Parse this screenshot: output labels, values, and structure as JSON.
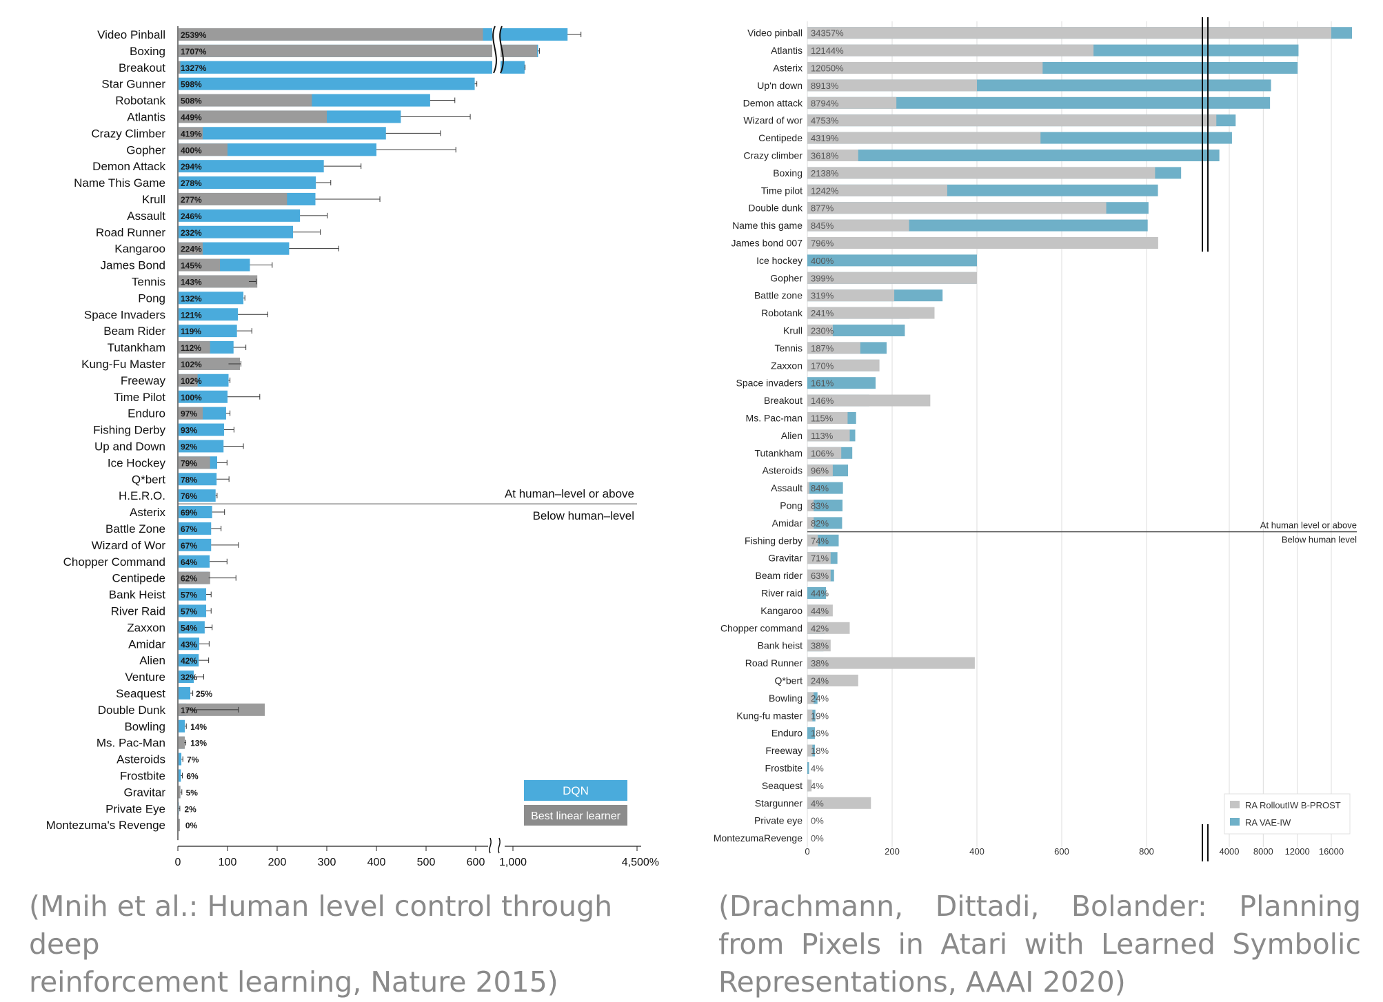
{
  "chart_data": [
    {
      "type": "bar",
      "orientation": "horizontal",
      "source_caption": "(Mnih et al.: Human level control through deep reinforcement learning, Nature 2015)",
      "categories": [
        "Video Pinball",
        "Boxing",
        "Breakout",
        "Star Gunner",
        "Robotank",
        "Atlantis",
        "Crazy Climber",
        "Gopher",
        "Demon Attack",
        "Name This Game",
        "Krull",
        "Assault",
        "Road Runner",
        "Kangaroo",
        "James Bond",
        "Tennis",
        "Pong",
        "Space Invaders",
        "Beam Rider",
        "Tutankham",
        "Kung-Fu Master",
        "Freeway",
        "Time Pilot",
        "Enduro",
        "Fishing Derby",
        "Up and Down",
        "Ice Hockey",
        "Q*bert",
        "H.E.R.O.",
        "Asterix",
        "Battle Zone",
        "Wizard of Wor",
        "Chopper Command",
        "Centipede",
        "Bank Heist",
        "River Raid",
        "Zaxxon",
        "Amidar",
        "Alien",
        "Venture",
        "Seaquest",
        "Double Dunk",
        "Bowling",
        "Ms. Pac-Man",
        "Asteroids",
        "Frostbite",
        "Gravitar",
        "Private Eye",
        "Montezuma's Revenge"
      ],
      "value_labels": [
        "2539%",
        "1707%",
        "1327%",
        "598%",
        "508%",
        "449%",
        "419%",
        "400%",
        "294%",
        "278%",
        "277%",
        "246%",
        "232%",
        "224%",
        "145%",
        "143%",
        "132%",
        "121%",
        "119%",
        "112%",
        "102%",
        "102%",
        "100%",
        "97%",
        "93%",
        "92%",
        "79%",
        "78%",
        "76%",
        "69%",
        "67%",
        "67%",
        "64%",
        "62%",
        "57%",
        "57%",
        "54%",
        "43%",
        "42%",
        "32%",
        "25%",
        "17%",
        "14%",
        "13%",
        "7%",
        "6%",
        "5%",
        "2%",
        "0%"
      ],
      "series": [
        {
          "name": "DQN",
          "values": [
            2539,
            1707,
            1327,
            598,
            508,
            449,
            419,
            400,
            294,
            278,
            277,
            246,
            232,
            224,
            145,
            143,
            132,
            121,
            119,
            112,
            102,
            102,
            100,
            97,
            93,
            92,
            79,
            78,
            76,
            69,
            67,
            67,
            64,
            62,
            57,
            57,
            54,
            43,
            42,
            32,
            25,
            17,
            14,
            13,
            7,
            6,
            5,
            2,
            0
          ],
          "error": [
            380,
            40,
            15,
            35,
            50,
            140,
            110,
            160,
            75,
            30,
            130,
            55,
            55,
            100,
            45,
            15,
            3,
            60,
            30,
            25,
            25,
            3,
            65,
            8,
            20,
            40,
            20,
            25,
            3,
            25,
            20,
            55,
            35,
            55,
            10,
            10,
            15,
            20,
            20,
            20,
            5,
            105,
            3,
            3,
            3,
            3,
            3,
            2,
            0
          ]
        },
        {
          "name": "Best linear learner",
          "values": [
            810,
            1680,
            5,
            0,
            270,
            300,
            50,
            100,
            0,
            0,
            220,
            0,
            0,
            50,
            85,
            160,
            0,
            0,
            0,
            65,
            125,
            40,
            0,
            50,
            0,
            0,
            65,
            0,
            0,
            0,
            0,
            0,
            0,
            65,
            0,
            0,
            0,
            0,
            0,
            0,
            0,
            175,
            0,
            14,
            0,
            0,
            5,
            0,
            4
          ]
        }
      ],
      "x_ticks": [
        "0",
        "100",
        "200",
        "300",
        "400",
        "500",
        "600",
        "1,000",
        "4,500%"
      ],
      "axis_break_ticks": [
        600,
        1000,
        4500
      ],
      "divider": {
        "after_category": "H.E.R.O.",
        "above_label": "At human–level or above",
        "below_label": "Below human–level"
      },
      "legend": {
        "items": [
          "DQN",
          "Best linear learner"
        ],
        "placement": "bottom-right"
      },
      "colors": {
        "dqn": "#4aabdc",
        "linear": "#9b9b9b",
        "legend_dqn": "#4aabdc",
        "legend_linear": "#8c8c8c"
      }
    },
    {
      "type": "bar",
      "orientation": "horizontal",
      "source_caption": "(Drachmann, Dittadi, Bolander: Planning from Pixels in Atari with Learned Symbolic Representations, AAAI 2020)",
      "categories": [
        "Video pinball",
        "Atlantis",
        "Asterix",
        "Up'n down",
        "Demon attack",
        "Wizard of wor",
        "Centipede",
        "Crazy climber",
        "Boxing",
        "Time pilot",
        "Double dunk",
        "Name this game",
        "James bond 007",
        "Ice hockey",
        "Gopher",
        "Battle zone",
        "Robotank",
        "Krull",
        "Tennis",
        "Zaxxon",
        "Space invaders",
        "Breakout",
        "Ms. Pac-man",
        "Alien",
        "Tutankham",
        "Asteroids",
        "Assault",
        "Pong",
        "Amidar",
        "Fishing derby",
        "Gravitar",
        "Beam rider",
        "River raid",
        "Kangaroo",
        "Chopper command",
        "Bank heist",
        "Road Runner",
        "Q*bert",
        "Bowling",
        "Kung-fu master",
        "Enduro",
        "Freeway",
        "Frostbite",
        "Seaquest",
        "Stargunner",
        "Private eye",
        "MontezumaRevenge"
      ],
      "value_labels": [
        "34357%",
        "12144%",
        "12050%",
        "8913%",
        "8794%",
        "4753%",
        "4319%",
        "3618%",
        "2138%",
        "1242%",
        "877%",
        "845%",
        "796%",
        "400%",
        "399%",
        "319%",
        "241%",
        "230%",
        "187%",
        "170%",
        "161%",
        "146%",
        "115%",
        "113%",
        "106%",
        "96%",
        "84%",
        "83%",
        "82%",
        "74%",
        "71%",
        "63%",
        "44%",
        "44%",
        "42%",
        "38%",
        "38%",
        "24%",
        "24%",
        "19%",
        "18%",
        "18%",
        "4%",
        "4%",
        "4%",
        "0%",
        "0%"
      ],
      "series": [
        {
          "name": "RA RolloutIW B-PROST",
          "values": [
            16000,
            675,
            555,
            400,
            210,
            3500,
            550,
            120,
            1130,
            330,
            705,
            240,
            1250,
            0,
            400,
            205,
            300,
            60,
            125,
            170,
            0,
            290,
            95,
            100,
            80,
            60,
            5,
            15,
            15,
            25,
            55,
            55,
            0,
            60,
            100,
            55,
            395,
            120,
            15,
            12,
            0,
            12,
            0,
            10,
            150,
            0,
            0
          ]
        },
        {
          "name": "RA VAE-IW",
          "values": [
            34357,
            12144,
            12050,
            8913,
            8794,
            4753,
            4319,
            3618,
            2138,
            1242,
            877,
            845,
            796,
            400,
            399,
            319,
            241,
            230,
            187,
            170,
            161,
            146,
            115,
            113,
            106,
            96,
            84,
            83,
            82,
            74,
            71,
            63,
            44,
            44,
            42,
            38,
            38,
            24,
            24,
            19,
            18,
            18,
            4,
            4,
            4,
            0,
            0
          ]
        }
      ],
      "x_ticks": [
        "0",
        "200",
        "400",
        "600",
        "800",
        "4000",
        "8000",
        "12000",
        "16000"
      ],
      "axis_break_ticks": [
        800,
        4000
      ],
      "divider": {
        "after_category": "Amidar",
        "above_label": "At human level or above",
        "below_label": "Below human level"
      },
      "legend": {
        "items": [
          "RA RolloutIW B-PROST",
          "RA VAE-IW"
        ],
        "placement": "bottom-right"
      },
      "colors": {
        "rollout": "#c4c4c4",
        "vae": "#6fb0c8"
      }
    }
  ],
  "captions": {
    "left": [
      "(Mnih et al.: Human level control through deep",
      "reinforcement learning, Nature 2015)"
    ],
    "right": [
      "(Drachmann, Dittadi, Bolander: Planning",
      "from Pixels in Atari with Learned Symbolic",
      "Representations, AAAI 2020)"
    ]
  }
}
